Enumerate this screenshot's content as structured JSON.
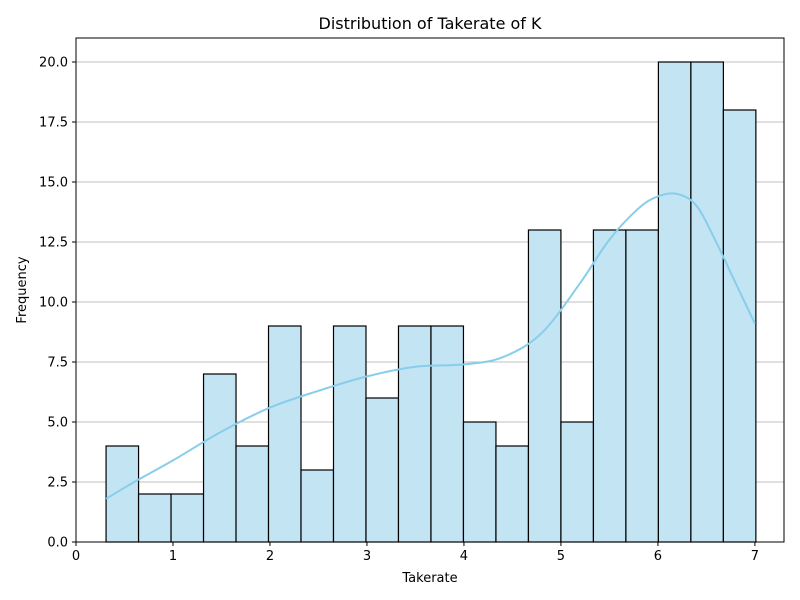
{
  "chart_data": {
    "type": "bar",
    "subtype": "histogram with kde line",
    "title": "Distribution of Takerate of K",
    "xlabel": "Takerate",
    "ylabel": "Frequency",
    "xlim": [
      0,
      7.3
    ],
    "ylim": [
      0,
      21
    ],
    "x_ticks": [
      0,
      1,
      2,
      3,
      4,
      5,
      6,
      7
    ],
    "x_tick_labels": [
      "0",
      "1",
      "2",
      "3",
      "4",
      "5",
      "6",
      "7"
    ],
    "y_ticks": [
      0,
      2.5,
      5,
      7.5,
      10,
      12.5,
      15,
      17.5,
      20
    ],
    "y_tick_labels": [
      "0.0",
      "2.5",
      "5.0",
      "7.5",
      "10.0",
      "12.5",
      "15.0",
      "17.5",
      "20.0"
    ],
    "grid": "horizontal",
    "bin_edges": [
      0.31,
      0.645,
      0.98,
      1.315,
      1.65,
      1.985,
      2.32,
      2.655,
      2.99,
      3.325,
      3.66,
      3.995,
      4.33,
      4.665,
      5.0,
      5.335,
      5.67,
      6.005,
      6.34,
      6.675,
      7.01
    ],
    "values": [
      4,
      2,
      2,
      7,
      4,
      9,
      3,
      9,
      6,
      9,
      9,
      5,
      4,
      13,
      5,
      13,
      13,
      20,
      20,
      18
    ],
    "kde": {
      "x": [
        0.31,
        0.6,
        1.0,
        1.5,
        2.0,
        2.5,
        3.0,
        3.5,
        4.0,
        4.4,
        4.8,
        5.2,
        5.5,
        5.8,
        6.0,
        6.2,
        6.4,
        6.6,
        6.8,
        7.0
      ],
      "y": [
        1.8,
        2.5,
        3.4,
        4.6,
        5.6,
        6.3,
        6.9,
        7.3,
        7.4,
        7.7,
        8.7,
        10.8,
        12.6,
        13.9,
        14.4,
        14.5,
        14.0,
        12.5,
        10.8,
        9.1
      ]
    },
    "colors": {
      "bar_fill": "#c3e4f3",
      "bar_edge": "#000000",
      "kde_line": "#87ceeb",
      "grid": "#c0c0c0"
    }
  }
}
